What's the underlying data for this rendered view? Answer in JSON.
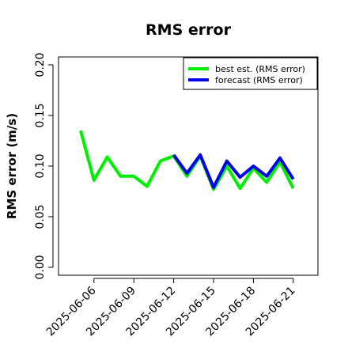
{
  "chart_data": {
    "type": "line",
    "title": "RMS error",
    "xlabel": "",
    "ylabel": "RMS error (m/s)",
    "ylim": [
      0,
      0.21
    ],
    "yticks": [
      "0.00",
      "0.05",
      "0.10",
      "0.15",
      "0.20"
    ],
    "x": [
      "2025-06-05",
      "2025-06-06",
      "2025-06-07",
      "2025-06-08",
      "2025-06-09",
      "2025-06-10",
      "2025-06-11",
      "2025-06-12",
      "2025-06-13",
      "2025-06-14",
      "2025-06-15",
      "2025-06-16",
      "2025-06-17",
      "2025-06-18",
      "2025-06-19",
      "2025-06-20",
      "2025-06-21"
    ],
    "xticks": [
      {
        "label": "2025-06-06",
        "color": "#000000"
      },
      {
        "label": "2025-06-09",
        "color": "#000000"
      },
      {
        "label": "2025-06-12",
        "color": "#228b22"
      },
      {
        "label": "2025-06-15",
        "color": "#000000"
      },
      {
        "label": "2025-06-18",
        "color": "#000000"
      },
      {
        "label": "2025-06-21",
        "color": "#000000"
      }
    ],
    "grid": false,
    "legend_position": "top-right",
    "series": [
      {
        "name": "best est. (RMS error)",
        "color": "#00ee00",
        "x": [
          "2025-06-05",
          "2025-06-06",
          "2025-06-07",
          "2025-06-08",
          "2025-06-09",
          "2025-06-10",
          "2025-06-11",
          "2025-06-12",
          "2025-06-13",
          "2025-06-14",
          "2025-06-15",
          "2025-06-16",
          "2025-06-17",
          "2025-06-18",
          "2025-06-19",
          "2025-06-20",
          "2025-06-21"
        ],
        "values": [
          0.135,
          0.086,
          0.109,
          0.09,
          0.09,
          0.08,
          0.105,
          0.11,
          0.09,
          0.11,
          0.077,
          0.1,
          0.078,
          0.098,
          0.084,
          0.104,
          0.078
        ]
      },
      {
        "name": "forecast (RMS error)",
        "color": "#0000ee",
        "x": [
          "2025-06-12",
          "2025-06-13",
          "2025-06-14",
          "2025-06-15",
          "2025-06-16",
          "2025-06-17",
          "2025-06-18",
          "2025-06-19",
          "2025-06-20",
          "2025-06-21"
        ],
        "values": [
          0.111,
          0.093,
          0.111,
          0.079,
          0.105,
          0.089,
          0.1,
          0.09,
          0.108,
          0.087
        ]
      }
    ]
  }
}
